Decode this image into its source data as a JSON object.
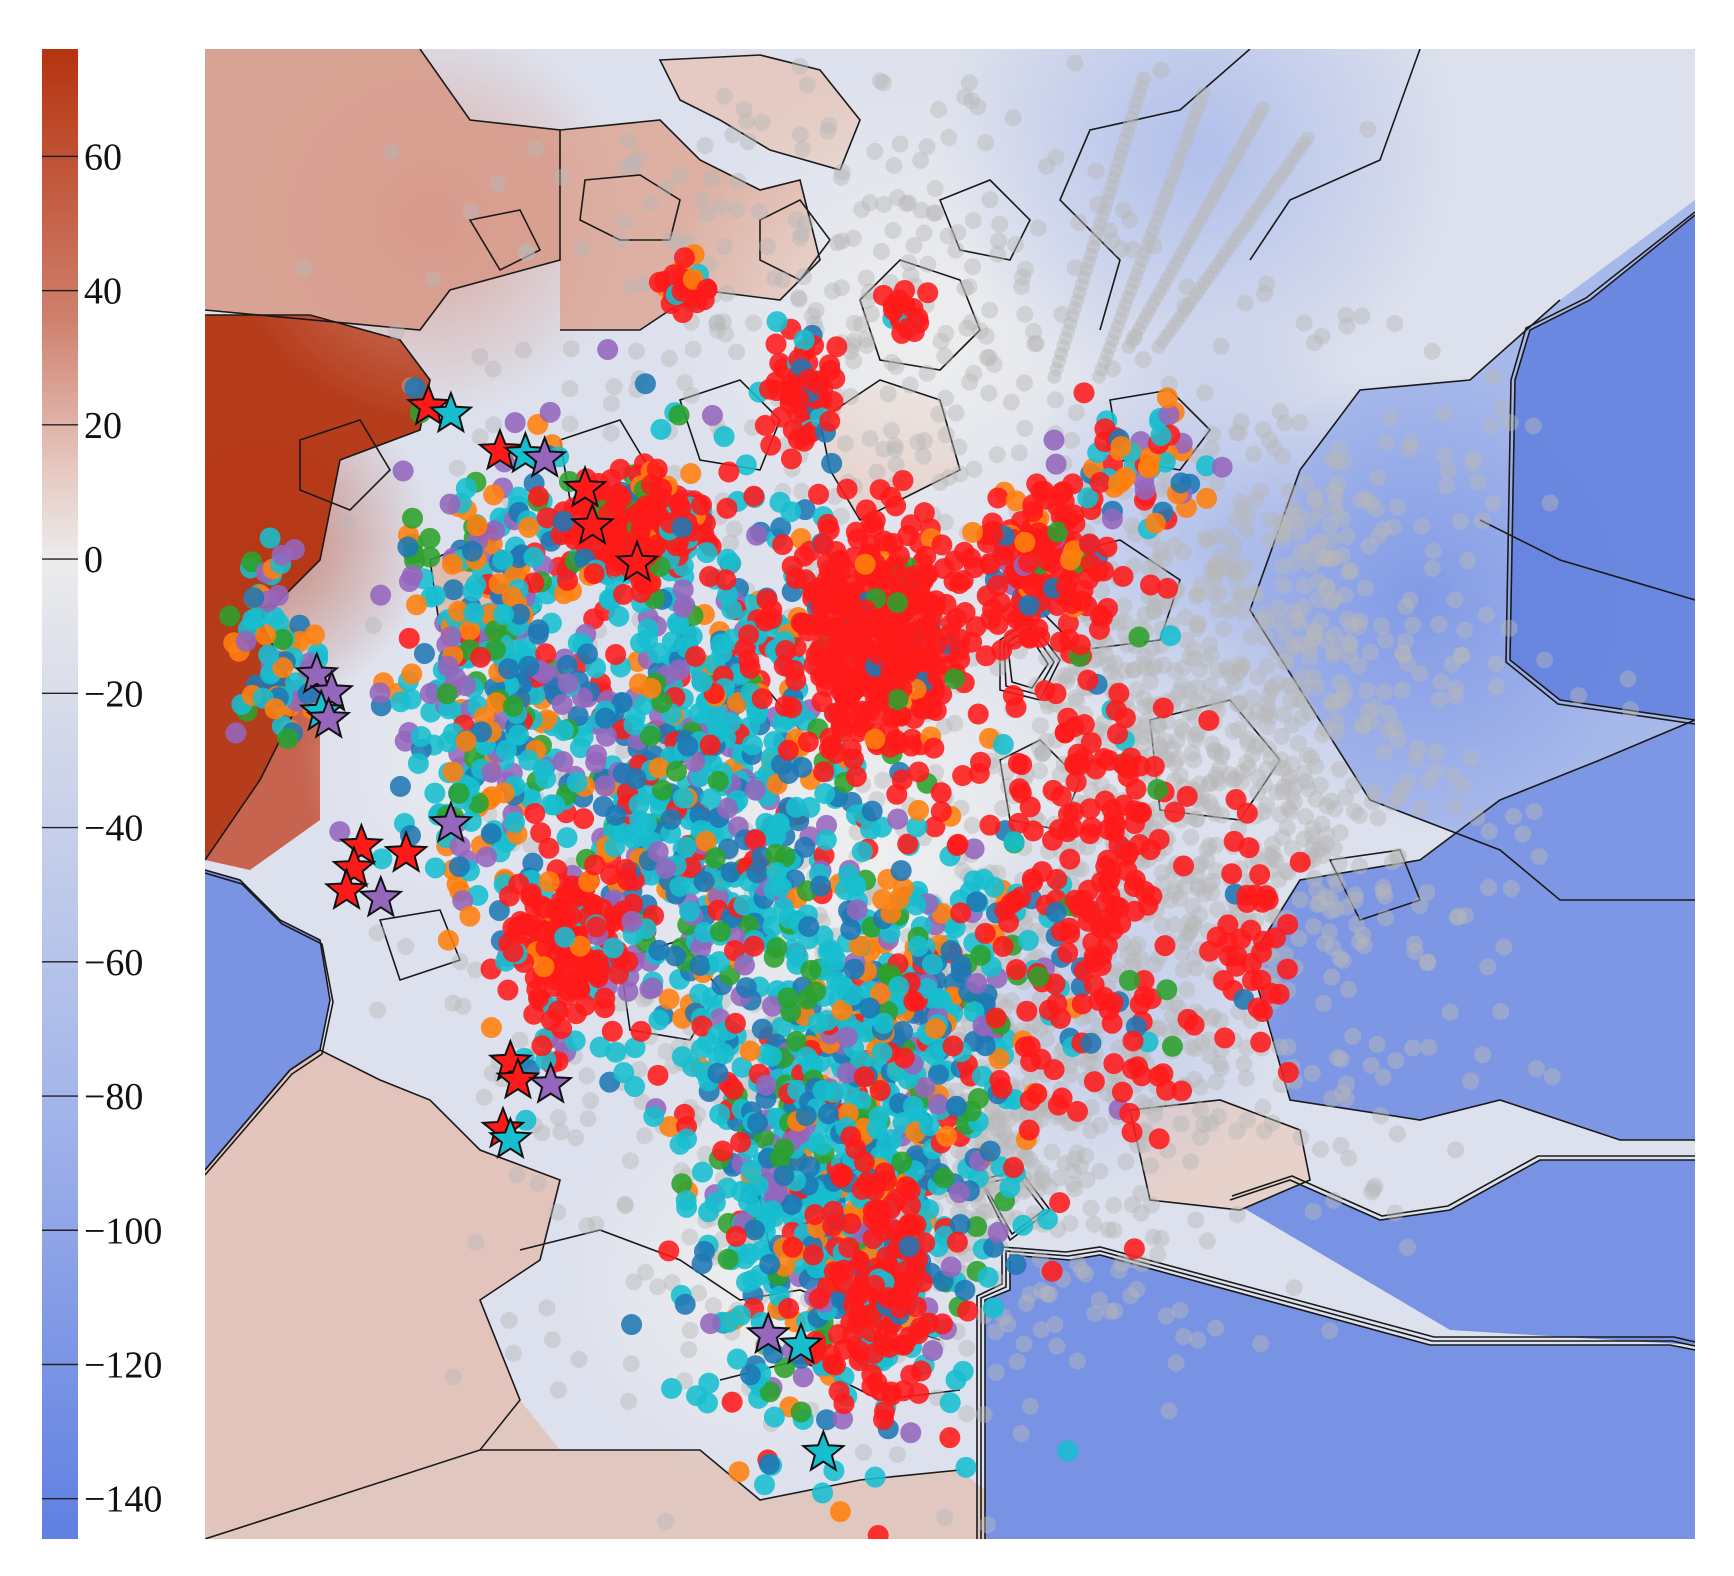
{
  "chart_data": {
    "type": "scatter",
    "title": "",
    "xlabel": "",
    "ylabel": "",
    "grid": false,
    "legend": "none",
    "background": "filled contour field with iso-lines",
    "colorbar": {
      "placement": "left",
      "range": [
        -146,
        76
      ],
      "ticks": [
        60,
        40,
        20,
        0,
        -20,
        -40,
        -60,
        -80,
        -100,
        -120,
        -140
      ],
      "tick_labels": [
        "60",
        "40",
        "20",
        "0",
        "−20",
        "−40",
        "−60",
        "−80",
        "−100",
        "−120",
        "−140"
      ],
      "colors": {
        "high": "#b5330f",
        "mid": "#ececec",
        "low": "#5f7fe2"
      }
    },
    "marker_colors": {
      "gray": "#b9b9b9",
      "red": "#ff1a1a",
      "cyan": "#17becf",
      "blue": "#1f77b4",
      "purple": "#9467bd",
      "orange": "#ff7f0e",
      "green": "#2ca02c"
    },
    "star_markers": [
      {
        "x": 0.15,
        "y": 0.76,
        "color": "red"
      },
      {
        "x": 0.165,
        "y": 0.755,
        "color": "cyan"
      },
      {
        "x": 0.198,
        "y": 0.73,
        "color": "red"
      },
      {
        "x": 0.215,
        "y": 0.728,
        "color": "cyan"
      },
      {
        "x": 0.228,
        "y": 0.725,
        "color": "purple"
      },
      {
        "x": 0.255,
        "y": 0.705,
        "color": "red"
      },
      {
        "x": 0.26,
        "y": 0.68,
        "color": "red"
      },
      {
        "x": 0.29,
        "y": 0.655,
        "color": "red"
      },
      {
        "x": 0.075,
        "y": 0.58,
        "color": "purple"
      },
      {
        "x": 0.085,
        "y": 0.568,
        "color": "purple"
      },
      {
        "x": 0.078,
        "y": 0.555,
        "color": "cyan"
      },
      {
        "x": 0.083,
        "y": 0.55,
        "color": "purple"
      },
      {
        "x": 0.165,
        "y": 0.48,
        "color": "purple"
      },
      {
        "x": 0.105,
        "y": 0.465,
        "color": "red"
      },
      {
        "x": 0.1,
        "y": 0.45,
        "color": "red"
      },
      {
        "x": 0.135,
        "y": 0.46,
        "color": "red"
      },
      {
        "x": 0.095,
        "y": 0.435,
        "color": "red"
      },
      {
        "x": 0.118,
        "y": 0.43,
        "color": "purple"
      },
      {
        "x": 0.205,
        "y": 0.32,
        "color": "red"
      },
      {
        "x": 0.21,
        "y": 0.308,
        "color": "red"
      },
      {
        "x": 0.232,
        "y": 0.305,
        "color": "purple"
      },
      {
        "x": 0.2,
        "y": 0.275,
        "color": "red"
      },
      {
        "x": 0.205,
        "y": 0.268,
        "color": "cyan"
      },
      {
        "x": 0.378,
        "y": 0.137,
        "color": "purple"
      },
      {
        "x": 0.4,
        "y": 0.13,
        "color": "cyan"
      },
      {
        "x": 0.415,
        "y": 0.058,
        "color": "cyan"
      }
    ],
    "clusters": [
      {
        "cx": 0.33,
        "cy": 0.51,
        "sx": 0.048,
        "sy": 0.095,
        "n": 700,
        "mix": {
          "cyan": 0.42,
          "blue": 0.2,
          "purple": 0.13,
          "orange": 0.12,
          "green": 0.05,
          "red": 0.08
        }
      },
      {
        "cx": 0.19,
        "cy": 0.58,
        "sx": 0.03,
        "sy": 0.07,
        "n": 380,
        "mix": {
          "cyan": 0.32,
          "blue": 0.18,
          "purple": 0.17,
          "orange": 0.18,
          "green": 0.1,
          "red": 0.05
        }
      },
      {
        "cx": 0.42,
        "cy": 0.23,
        "sx": 0.05,
        "sy": 0.075,
        "n": 600,
        "mix": {
          "cyan": 0.45,
          "blue": 0.22,
          "purple": 0.09,
          "orange": 0.1,
          "green": 0.06,
          "red": 0.08
        }
      },
      {
        "cx": 0.47,
        "cy": 0.37,
        "sx": 0.05,
        "sy": 0.06,
        "n": 350,
        "mix": {
          "cyan": 0.35,
          "blue": 0.18,
          "purple": 0.12,
          "orange": 0.16,
          "green": 0.14,
          "red": 0.05
        }
      },
      {
        "cx": 0.45,
        "cy": 0.6,
        "sx": 0.03,
        "sy": 0.04,
        "n": 420,
        "mix": {
          "red": 0.9,
          "blue": 0.04,
          "orange": 0.03,
          "green": 0.03
        }
      },
      {
        "cx": 0.56,
        "cy": 0.66,
        "sx": 0.02,
        "sy": 0.025,
        "n": 150,
        "mix": {
          "red": 0.7,
          "blue": 0.1,
          "purple": 0.08,
          "orange": 0.07,
          "green": 0.05
        }
      },
      {
        "cx": 0.29,
        "cy": 0.68,
        "sx": 0.025,
        "sy": 0.018,
        "n": 260,
        "mix": {
          "red": 0.72,
          "cyan": 0.12,
          "blue": 0.07,
          "green": 0.05,
          "orange": 0.04
        }
      },
      {
        "cx": 0.4,
        "cy": 0.77,
        "sx": 0.012,
        "sy": 0.015,
        "n": 70,
        "mix": {
          "red": 0.85,
          "cyan": 0.1,
          "blue": 0.05
        }
      },
      {
        "cx": 0.32,
        "cy": 0.84,
        "sx": 0.008,
        "sy": 0.01,
        "n": 30,
        "mix": {
          "red": 0.8,
          "orange": 0.1,
          "cyan": 0.1
        }
      },
      {
        "cx": 0.47,
        "cy": 0.82,
        "sx": 0.006,
        "sy": 0.008,
        "n": 20,
        "mix": {
          "red": 0.7,
          "blue": 0.2,
          "cyan": 0.1
        }
      },
      {
        "cx": 0.6,
        "cy": 0.46,
        "sx": 0.035,
        "sy": 0.1,
        "n": 230,
        "mix": {
          "red": 0.9,
          "green": 0.04,
          "cyan": 0.03,
          "blue": 0.03
        }
      },
      {
        "cx": 0.63,
        "cy": 0.72,
        "sx": 0.02,
        "sy": 0.02,
        "n": 60,
        "mix": {
          "cyan": 0.3,
          "orange": 0.3,
          "purple": 0.2,
          "red": 0.1,
          "blue": 0.1
        }
      },
      {
        "cx": 0.45,
        "cy": 0.17,
        "sx": 0.022,
        "sy": 0.04,
        "n": 150,
        "mix": {
          "red": 0.92,
          "blue": 0.04,
          "cyan": 0.04
        }
      },
      {
        "cx": 0.24,
        "cy": 0.4,
        "sx": 0.022,
        "sy": 0.035,
        "n": 150,
        "mix": {
          "red": 0.85,
          "cyan": 0.05,
          "purple": 0.05,
          "orange": 0.05
        }
      },
      {
        "cx": 0.05,
        "cy": 0.59,
        "sx": 0.015,
        "sy": 0.04,
        "n": 70,
        "mix": {
          "cyan": 0.35,
          "purple": 0.2,
          "orange": 0.2,
          "green": 0.1,
          "blue": 0.15
        }
      },
      {
        "cx": 0.7,
        "cy": 0.41,
        "sx": 0.015,
        "sy": 0.04,
        "n": 40,
        "mix": {
          "red": 0.9,
          "blue": 0.1
        }
      }
    ]
  }
}
